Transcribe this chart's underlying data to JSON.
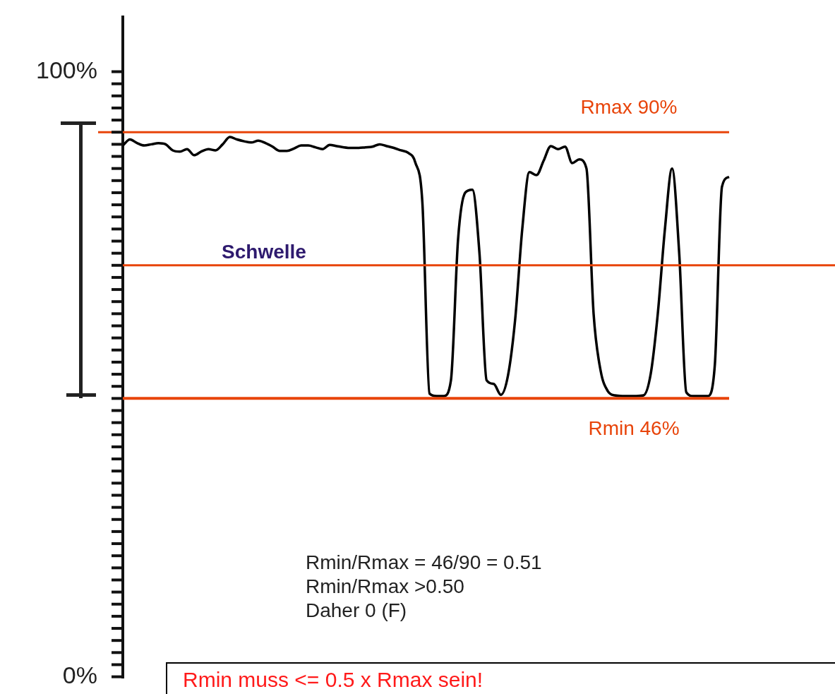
{
  "chart_data": {
    "type": "line",
    "categories": [
      null,
      null,
      null,
      null,
      null,
      null,
      null,
      null,
      null,
      null,
      null,
      null,
      null,
      null,
      null,
      null,
      null,
      null,
      null,
      null,
      null,
      null,
      null,
      null,
      null,
      null,
      null,
      null,
      null,
      null,
      null,
      null,
      null,
      null,
      null,
      null,
      null,
      null,
      null,
      null,
      null,
      null,
      null,
      null,
      null,
      null,
      null,
      null,
      null,
      null,
      null,
      null,
      null,
      null,
      null,
      null,
      null,
      null,
      null,
      null,
      null,
      null,
      null,
      null,
      null,
      null,
      null,
      null,
      null,
      null,
      null,
      null,
      null,
      null,
      null,
      null,
      null,
      null,
      null,
      null,
      null,
      null,
      null,
      null,
      null,
      null
    ],
    "series": [
      {
        "color": "#000000",
        "values": [
          87.8,
          88.8,
          88.2,
          87.8,
          88.0,
          88.2,
          88.0,
          87.0,
          86.8,
          87.2,
          86.2,
          86.8,
          87.2,
          87.0,
          88.0,
          89.2,
          88.8,
          88.5,
          88.3,
          88.6,
          88.2,
          87.6,
          86.9,
          86.9,
          87.3,
          87.8,
          87.8,
          87.5,
          87.2,
          87.9,
          87.7,
          87.5,
          87.4,
          87.4,
          87.5,
          87.6,
          88.0,
          87.7,
          87.4,
          87.0,
          86.6,
          85.0,
          78.3,
          46.8,
          46.4,
          46.4,
          49.0,
          72.3,
          80.0,
          80.5,
          70.0,
          49.0,
          48.4,
          46.6,
          49.8,
          59.0,
          74.0,
          83.4,
          82.9,
          85.3,
          87.7,
          87.2,
          87.6,
          84.9,
          85.5,
          84.0,
          60.0,
          50.5,
          47.2,
          46.5,
          46.4,
          46.4,
          46.4,
          46.5,
          50.0,
          60.0,
          74.0,
          84.0,
          70.0,
          47.0,
          46.4,
          46.4,
          46.4,
          51.6,
          81.0,
          82.6
        ]
      }
    ],
    "ylim": [
      0,
      109
    ],
    "yticks": [
      {
        "value": 0,
        "label": "0%"
      },
      {
        "value": 2,
        "label": null
      },
      {
        "value": 4,
        "label": null
      },
      {
        "value": 6,
        "label": null
      },
      {
        "value": 8,
        "label": null
      },
      {
        "value": 10,
        "label": null
      },
      {
        "value": 12,
        "label": null
      },
      {
        "value": 14,
        "label": null
      },
      {
        "value": 16,
        "label": null
      },
      {
        "value": 18,
        "label": null
      },
      {
        "value": 20,
        "label": null
      },
      {
        "value": 22,
        "label": null
      },
      {
        "value": 24,
        "label": null
      },
      {
        "value": 26,
        "label": null
      },
      {
        "value": 28,
        "label": null
      },
      {
        "value": 30,
        "label": null
      },
      {
        "value": 32,
        "label": null
      },
      {
        "value": 34,
        "label": null
      },
      {
        "value": 36,
        "label": null
      },
      {
        "value": 38,
        "label": null
      },
      {
        "value": 40,
        "label": null
      },
      {
        "value": 42,
        "label": null
      },
      {
        "value": 44,
        "label": null
      },
      {
        "value": 46,
        "label": null
      },
      {
        "value": 48,
        "label": null
      },
      {
        "value": 50,
        "label": null
      },
      {
        "value": 52,
        "label": null
      },
      {
        "value": 54,
        "label": null
      },
      {
        "value": 56,
        "label": null
      },
      {
        "value": 58,
        "label": null
      },
      {
        "value": 60,
        "label": null
      },
      {
        "value": 62,
        "label": null
      },
      {
        "value": 64,
        "label": null
      },
      {
        "value": 66,
        "label": null
      },
      {
        "value": 68,
        "label": null
      },
      {
        "value": 70,
        "label": null
      },
      {
        "value": 72,
        "label": null
      },
      {
        "value": 74,
        "label": null
      },
      {
        "value": 76,
        "label": null
      },
      {
        "value": 78,
        "label": null
      },
      {
        "value": 80,
        "label": null
      },
      {
        "value": 82,
        "label": null
      },
      {
        "value": 84,
        "label": null
      },
      {
        "value": 86,
        "label": null
      },
      {
        "value": 88,
        "label": null
      },
      {
        "value": 90,
        "label": null
      },
      {
        "value": 92,
        "label": null
      },
      {
        "value": 94,
        "label": null
      },
      {
        "value": 96,
        "label": null
      },
      {
        "value": 98,
        "label": null
      },
      {
        "value": 100,
        "label": "100%"
      }
    ],
    "tick_labels": "y",
    "ref_lines": [
      {
        "axis": "y",
        "value": 90,
        "label": "Rmax 90%",
        "color": "#e8440a"
      },
      {
        "axis": "y",
        "value": 68,
        "label": "Schwelle",
        "color": "#e8440a"
      },
      {
        "axis": "y",
        "value": 46,
        "label": "Rmin 46%",
        "color": "#e8440a"
      }
    ],
    "annotations": [
      "Rmin/Rmax = 46/90 = 0.51",
      "Rmin/Rmax >0.50",
      "Daher 0 (F)",
      "Rmin muss <= 0.5 x Rmax sein!"
    ],
    "legend": false,
    "grid": false,
    "marker": "none",
    "line_style": "solid"
  }
}
